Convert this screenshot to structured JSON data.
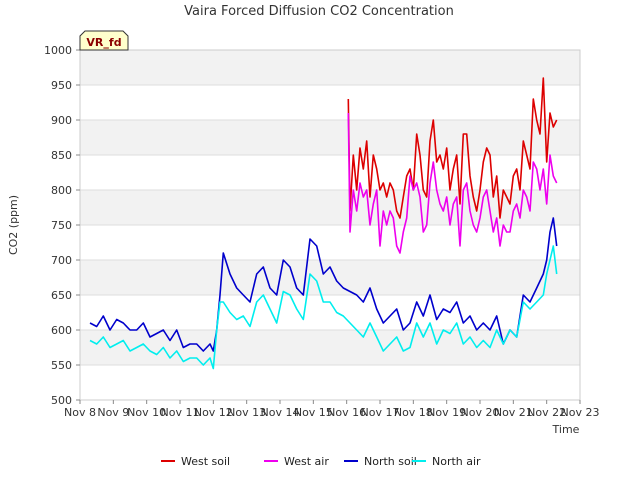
{
  "chart_data": {
    "type": "line",
    "title": "Vaira Forced Diffusion CO2 Concentration",
    "xlabel": "Time",
    "ylabel": "CO2 (ppm)",
    "badge": "VR_fd",
    "ylim": [
      500,
      1000
    ],
    "xlim": [
      0,
      15
    ],
    "yticks": [
      500,
      550,
      600,
      650,
      700,
      750,
      800,
      850,
      900,
      950,
      1000
    ],
    "xticks": [
      0,
      1,
      2,
      3,
      4,
      5,
      6,
      7,
      8,
      9,
      10,
      11,
      12,
      13,
      14,
      15
    ],
    "xtick_labels": [
      "Nov 8",
      "Nov 9",
      "Nov 10",
      "Nov 11",
      "Nov 12",
      "Nov 13",
      "Nov 14",
      "Nov 15",
      "Nov 16",
      "Nov 17",
      "Nov 18",
      "Nov 19",
      "Nov 20",
      "Nov 21",
      "Nov 22",
      "Nov 23"
    ],
    "x_unit_note": "x values are days after Nov 8",
    "grid": true,
    "legend_position": "bottom",
    "series": [
      {
        "name": "West soil",
        "color": "#dd0000",
        "x": [
          8.05,
          8.1,
          8.2,
          8.3,
          8.4,
          8.5,
          8.6,
          8.7,
          8.8,
          8.9,
          9.0,
          9.1,
          9.2,
          9.3,
          9.4,
          9.5,
          9.6,
          9.7,
          9.8,
          9.9,
          10.0,
          10.1,
          10.2,
          10.3,
          10.4,
          10.5,
          10.6,
          10.7,
          10.8,
          10.9,
          11.0,
          11.1,
          11.2,
          11.3,
          11.4,
          11.5,
          11.6,
          11.7,
          11.8,
          11.9,
          12.0,
          12.1,
          12.2,
          12.3,
          12.4,
          12.5,
          12.6,
          12.7,
          12.8,
          12.9,
          13.0,
          13.1,
          13.2,
          13.3,
          13.4,
          13.5,
          13.6,
          13.7,
          13.8,
          13.9,
          14.0,
          14.1,
          14.2,
          14.3
        ],
        "y": [
          930,
          770,
          850,
          800,
          860,
          830,
          870,
          790,
          850,
          830,
          800,
          810,
          790,
          810,
          800,
          770,
          760,
          790,
          820,
          830,
          800,
          880,
          850,
          800,
          790,
          870,
          900,
          840,
          850,
          830,
          860,
          800,
          830,
          850,
          780,
          880,
          880,
          820,
          790,
          770,
          800,
          840,
          860,
          850,
          790,
          820,
          760,
          800,
          790,
          780,
          820,
          830,
          800,
          870,
          850,
          830,
          930,
          900,
          880,
          960,
          840,
          910,
          890,
          900
        ]
      },
      {
        "name": "West air",
        "color": "#ee00ee",
        "x": [
          8.05,
          8.1,
          8.2,
          8.3,
          8.4,
          8.5,
          8.6,
          8.7,
          8.8,
          8.9,
          9.0,
          9.1,
          9.2,
          9.3,
          9.4,
          9.5,
          9.6,
          9.7,
          9.8,
          9.9,
          10.0,
          10.1,
          10.2,
          10.3,
          10.4,
          10.5,
          10.6,
          10.7,
          10.8,
          10.9,
          11.0,
          11.1,
          11.2,
          11.3,
          11.4,
          11.5,
          11.6,
          11.7,
          11.8,
          11.9,
          12.0,
          12.1,
          12.2,
          12.3,
          12.4,
          12.5,
          12.6,
          12.7,
          12.8,
          12.9,
          13.0,
          13.1,
          13.2,
          13.3,
          13.4,
          13.5,
          13.6,
          13.7,
          13.8,
          13.9,
          14.0,
          14.1,
          14.2,
          14.3
        ],
        "y": [
          910,
          740,
          800,
          770,
          810,
          790,
          800,
          750,
          780,
          800,
          720,
          770,
          750,
          770,
          760,
          720,
          710,
          740,
          760,
          820,
          800,
          810,
          790,
          740,
          750,
          810,
          840,
          800,
          780,
          770,
          790,
          750,
          780,
          790,
          720,
          800,
          810,
          770,
          750,
          740,
          760,
          790,
          800,
          770,
          740,
          760,
          720,
          750,
          740,
          740,
          770,
          780,
          760,
          800,
          790,
          770,
          840,
          830,
          800,
          830,
          780,
          850,
          820,
          810
        ]
      },
      {
        "name": "North soil",
        "color": "#0000cc",
        "x": [
          0.3,
          0.5,
          0.7,
          0.9,
          1.1,
          1.3,
          1.5,
          1.7,
          1.9,
          2.1,
          2.3,
          2.5,
          2.7,
          2.9,
          3.1,
          3.3,
          3.5,
          3.7,
          3.9,
          4.0,
          4.1,
          4.2,
          4.3,
          4.5,
          4.7,
          4.9,
          5.1,
          5.3,
          5.5,
          5.7,
          5.9,
          6.1,
          6.3,
          6.5,
          6.7,
          6.9,
          7.1,
          7.3,
          7.5,
          7.7,
          7.9,
          8.1,
          8.3,
          8.5,
          8.7,
          8.9,
          9.1,
          9.3,
          9.5,
          9.7,
          9.9,
          10.1,
          10.3,
          10.5,
          10.7,
          10.9,
          11.1,
          11.3,
          11.5,
          11.7,
          11.9,
          12.1,
          12.3,
          12.5,
          12.7,
          12.9,
          13.1,
          13.3,
          13.5,
          13.7,
          13.9,
          14.0,
          14.1,
          14.2,
          14.3
        ],
        "y": [
          610,
          605,
          620,
          600,
          615,
          610,
          600,
          600,
          610,
          590,
          595,
          600,
          585,
          600,
          575,
          580,
          580,
          570,
          580,
          570,
          600,
          650,
          710,
          680,
          660,
          650,
          640,
          680,
          690,
          660,
          650,
          700,
          690,
          660,
          650,
          730,
          720,
          680,
          690,
          670,
          660,
          655,
          650,
          640,
          660,
          630,
          610,
          620,
          630,
          600,
          610,
          640,
          620,
          650,
          615,
          630,
          625,
          640,
          610,
          620,
          600,
          610,
          600,
          620,
          580,
          600,
          590,
          650,
          640,
          660,
          680,
          700,
          740,
          760,
          720
        ]
      },
      {
        "name": "North air",
        "color": "#00eeee",
        "x": [
          0.3,
          0.5,
          0.7,
          0.9,
          1.1,
          1.3,
          1.5,
          1.7,
          1.9,
          2.1,
          2.3,
          2.5,
          2.7,
          2.9,
          3.1,
          3.3,
          3.5,
          3.7,
          3.9,
          4.0,
          4.1,
          4.2,
          4.3,
          4.5,
          4.7,
          4.9,
          5.1,
          5.3,
          5.5,
          5.7,
          5.9,
          6.1,
          6.3,
          6.5,
          6.7,
          6.9,
          7.1,
          7.3,
          7.5,
          7.7,
          7.9,
          8.1,
          8.3,
          8.5,
          8.7,
          8.9,
          9.1,
          9.3,
          9.5,
          9.7,
          9.9,
          10.1,
          10.3,
          10.5,
          10.7,
          10.9,
          11.1,
          11.3,
          11.5,
          11.7,
          11.9,
          12.1,
          12.3,
          12.5,
          12.7,
          12.9,
          13.1,
          13.3,
          13.5,
          13.7,
          13.9,
          14.0,
          14.1,
          14.2,
          14.3
        ],
        "y": [
          585,
          580,
          590,
          575,
          580,
          585,
          570,
          575,
          580,
          570,
          565,
          575,
          560,
          570,
          555,
          560,
          560,
          550,
          560,
          545,
          600,
          640,
          640,
          625,
          615,
          620,
          605,
          640,
          650,
          630,
          610,
          655,
          650,
          630,
          615,
          680,
          670,
          640,
          640,
          625,
          620,
          610,
          600,
          590,
          610,
          590,
          570,
          580,
          590,
          570,
          575,
          610,
          590,
          610,
          580,
          600,
          595,
          610,
          580,
          590,
          575,
          585,
          575,
          600,
          580,
          600,
          590,
          640,
          630,
          640,
          650,
          680,
          700,
          720,
          680
        ]
      }
    ]
  }
}
